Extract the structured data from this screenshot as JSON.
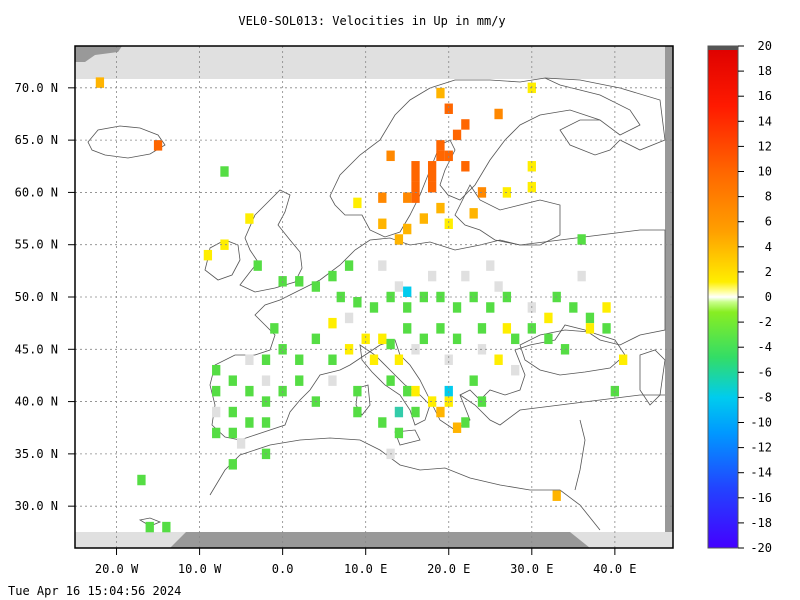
{
  "title": "VEL0-SOL013: Velocities in Up in mm/y",
  "timestamp": "Tue Apr 16 15:04:56 2024",
  "map": {
    "lon_range": [
      -25,
      47
    ],
    "lat_range": [
      26,
      74
    ],
    "y_ticks": [
      "70.0 N",
      "65.0 N",
      "60.0 N",
      "55.0 N",
      "50.0 N",
      "45.0 N",
      "40.0 N",
      "35.0 N",
      "30.0 N"
    ],
    "x_ticks": [
      "20.0 W",
      "10.0 W",
      "0.0",
      "10.0 E",
      "20.0 E",
      "30.0 E",
      "40.0 E"
    ],
    "colors": {
      "no_data": "#e0e0e0",
      "frame": "#000000",
      "grid": "#888888",
      "coast": "#555555"
    }
  },
  "colorbar": {
    "labels": [
      "20",
      "18",
      "16",
      "14",
      "12",
      "10",
      "8",
      "6",
      "4",
      "2",
      "0",
      "-2",
      "-4",
      "-6",
      "-8",
      "-10",
      "-12",
      "-14",
      "-16",
      "-18",
      "-20"
    ]
  },
  "cells": [
    {
      "lon": 13,
      "lat": 63.5,
      "v": 7
    },
    {
      "lon": 16,
      "lat": 62.5,
      "v": 8
    },
    {
      "lon": 16,
      "lat": 61.5,
      "v": 8
    },
    {
      "lon": 16,
      "lat": 60.5,
      "v": 8
    },
    {
      "lon": 16,
      "lat": 59.5,
      "v": 8
    },
    {
      "lon": 19,
      "lat": 64.5,
      "v": 8
    },
    {
      "lon": 19,
      "lat": 63.5,
      "v": 8
    },
    {
      "lon": 18,
      "lat": 62.5,
      "v": 8
    },
    {
      "lon": 18,
      "lat": 61.5,
      "v": 8
    },
    {
      "lon": 18,
      "lat": 60.5,
      "v": 8
    },
    {
      "lon": 20,
      "lat": 63.5,
      "v": 8
    },
    {
      "lon": 21,
      "lat": 65.5,
      "v": 8
    },
    {
      "lon": 20,
      "lat": 68,
      "v": 8
    },
    {
      "lon": 22,
      "lat": 66.5,
      "v": 8
    },
    {
      "lon": 26,
      "lat": 67.5,
      "v": 7
    },
    {
      "lon": 22,
      "lat": 62.5,
      "v": 8
    },
    {
      "lon": 24,
      "lat": 60,
      "v": 6
    },
    {
      "lon": 15,
      "lat": 59.5,
      "v": 7
    },
    {
      "lon": 12,
      "lat": 59.5,
      "v": 6
    },
    {
      "lon": 17,
      "lat": 57.5,
      "v": 5
    },
    {
      "lon": 12,
      "lat": 57,
      "v": 4
    },
    {
      "lon": 15,
      "lat": 56.5,
      "v": 4
    },
    {
      "lon": 14,
      "lat": 55.5,
      "v": 4
    },
    {
      "lon": 19,
      "lat": 58.5,
      "v": 5
    },
    {
      "lon": 23,
      "lat": 58,
      "v": 4
    },
    {
      "lon": 27,
      "lat": 60,
      "v": 3
    },
    {
      "lon": 30,
      "lat": 60.5,
      "v": 3
    },
    {
      "lon": 30,
      "lat": 62.5,
      "v": 3
    },
    {
      "lon": 9,
      "lat": 59,
      "v": 3
    },
    {
      "lon": 20,
      "lat": 57,
      "v": 3
    },
    {
      "lon": 19,
      "lat": 69.5,
      "v": 4
    },
    {
      "lon": 30,
      "lat": 70,
      "v": 3
    },
    {
      "lon": -22,
      "lat": 70.5,
      "v": 4
    },
    {
      "lon": -15,
      "lat": 64.5,
      "v": 8
    },
    {
      "lon": -7,
      "lat": 62,
      "v": -2
    },
    {
      "lon": -4,
      "lat": 57.5,
      "v": 3
    },
    {
      "lon": -7,
      "lat": 55,
      "v": 3
    },
    {
      "lon": -9,
      "lat": 54,
      "v": 3
    },
    {
      "lon": -3,
      "lat": 53,
      "v": -2
    },
    {
      "lon": 0,
      "lat": 51.5,
      "v": -2
    },
    {
      "lon": 2,
      "lat": 51.5,
      "v": -2
    },
    {
      "lon": 4,
      "lat": 51,
      "v": -2
    },
    {
      "lon": 6,
      "lat": 52,
      "v": -2
    },
    {
      "lon": 8,
      "lat": 53,
      "v": -2
    },
    {
      "lon": 7,
      "lat": 50,
      "v": -2
    },
    {
      "lon": 9,
      "lat": 49.5,
      "v": -2
    },
    {
      "lon": 11,
      "lat": 49,
      "v": -2
    },
    {
      "lon": 13,
      "lat": 50,
      "v": -2
    },
    {
      "lon": 15,
      "lat": 49,
      "v": -2
    },
    {
      "lon": 17,
      "lat": 50,
      "v": -2
    },
    {
      "lon": 19,
      "lat": 50,
      "v": -2
    },
    {
      "lon": 21,
      "lat": 49,
      "v": -2
    },
    {
      "lon": 23,
      "lat": 50,
      "v": -2
    },
    {
      "lon": 25,
      "lat": 49,
      "v": -2
    },
    {
      "lon": 27,
      "lat": 50,
      "v": -2
    },
    {
      "lon": 33,
      "lat": 50,
      "v": -2
    },
    {
      "lon": 35,
      "lat": 49,
      "v": -2
    },
    {
      "lon": 37,
      "lat": 48,
      "v": -2
    },
    {
      "lon": 39,
      "lat": 47,
      "v": -2
    },
    {
      "lon": 30,
      "lat": 47,
      "v": -2
    },
    {
      "lon": 32,
      "lat": 46,
      "v": -2
    },
    {
      "lon": 28,
      "lat": 46,
      "v": -2
    },
    {
      "lon": 15,
      "lat": 47,
      "v": -2
    },
    {
      "lon": 17,
      "lat": 46,
      "v": -2
    },
    {
      "lon": 19,
      "lat": 47,
      "v": -2
    },
    {
      "lon": 21,
      "lat": 46,
      "v": -2
    },
    {
      "lon": 24,
      "lat": 47,
      "v": -2
    },
    {
      "lon": -1,
      "lat": 47,
      "v": -2
    },
    {
      "lon": 0,
      "lat": 45,
      "v": -2
    },
    {
      "lon": -2,
      "lat": 44,
      "v": -2
    },
    {
      "lon": 2,
      "lat": 44,
      "v": -2
    },
    {
      "lon": 4,
      "lat": 46,
      "v": -2
    },
    {
      "lon": 6,
      "lat": 44,
      "v": -2
    },
    {
      "lon": -8,
      "lat": 43,
      "v": -2
    },
    {
      "lon": -6,
      "lat": 42,
      "v": -2
    },
    {
      "lon": -8,
      "lat": 41,
      "v": -2
    },
    {
      "lon": -4,
      "lat": 41,
      "v": -2
    },
    {
      "lon": -2,
      "lat": 40,
      "v": -2
    },
    {
      "lon": 0,
      "lat": 41,
      "v": -2
    },
    {
      "lon": 2,
      "lat": 42,
      "v": -2
    },
    {
      "lon": -6,
      "lat": 39,
      "v": -2
    },
    {
      "lon": -4,
      "lat": 38,
      "v": -2
    },
    {
      "lon": -2,
      "lat": 38,
      "v": -2
    },
    {
      "lon": 4,
      "lat": 40,
      "v": -2
    },
    {
      "lon": -8,
      "lat": 37,
      "v": -2
    },
    {
      "lon": -6,
      "lat": 37,
      "v": -2
    },
    {
      "lon": -2,
      "lat": 35,
      "v": -2
    },
    {
      "lon": -6,
      "lat": 34,
      "v": -2
    },
    {
      "lon": 9,
      "lat": 41,
      "v": -2
    },
    {
      "lon": 9,
      "lat": 39,
      "v": -2
    },
    {
      "lon": 13,
      "lat": 42,
      "v": -2
    },
    {
      "lon": 15,
      "lat": 41,
      "v": -2
    },
    {
      "lon": 16,
      "lat": 39,
      "v": -2
    },
    {
      "lon": 14,
      "lat": 37,
      "v": -2
    },
    {
      "lon": 12,
      "lat": 38,
      "v": -2
    },
    {
      "lon": 11,
      "lat": 44,
      "v": 2
    },
    {
      "lon": 8,
      "lat": 45,
      "v": 2
    },
    {
      "lon": 12,
      "lat": 46,
      "v": 2
    },
    {
      "lon": 14,
      "lat": 44,
      "v": 2
    },
    {
      "lon": 16,
      "lat": 41,
      "v": 3
    },
    {
      "lon": 18,
      "lat": 40,
      "v": 3
    },
    {
      "lon": 20,
      "lat": 40,
      "v": 3
    },
    {
      "lon": 22,
      "lat": 38,
      "v": -2
    },
    {
      "lon": 24,
      "lat": 40,
      "v": -2
    },
    {
      "lon": 23,
      "lat": 42,
      "v": -2
    },
    {
      "lon": 26,
      "lat": 44,
      "v": 3
    },
    {
      "lon": 34,
      "lat": 45,
      "v": -2
    },
    {
      "lon": 41,
      "lat": 44,
      "v": 3
    },
    {
      "lon": 40,
      "lat": 41,
      "v": -2
    },
    {
      "lon": 33,
      "lat": 31,
      "v": 4
    },
    {
      "lon": -14,
      "lat": 28,
      "v": -2
    },
    {
      "lon": -16,
      "lat": 28,
      "v": -2
    },
    {
      "lon": -17,
      "lat": 32.5,
      "v": -2
    },
    {
      "lon": 36,
      "lat": 55.5,
      "v": -2
    },
    {
      "lon": 15,
      "lat": 50.5,
      "v": -7
    },
    {
      "lon": 20,
      "lat": 41,
      "v": -7
    },
    {
      "lon": 13,
      "lat": 45.5,
      "v": -3
    },
    {
      "lon": 14,
      "lat": 39,
      "v": -4
    },
    {
      "lon": 21,
      "lat": 37.5,
      "v": 4
    },
    {
      "lon": 19,
      "lat": 39,
      "v": 4
    },
    {
      "lon": 10,
      "lat": 46,
      "v": 2
    },
    {
      "lon": 6,
      "lat": 47.5,
      "v": 2
    },
    {
      "lon": 32,
      "lat": 48,
      "v": 3
    },
    {
      "lon": 39,
      "lat": 49,
      "v": 3
    },
    {
      "lon": 37,
      "lat": 47,
      "v": 3
    },
    {
      "lon": 27,
      "lat": 47,
      "v": 3
    }
  ],
  "no_data_cells": [
    {
      "lon": 12,
      "lat": 53
    },
    {
      "lon": 14,
      "lat": 51
    },
    {
      "lon": 18,
      "lat": 52
    },
    {
      "lon": 22,
      "lat": 52
    },
    {
      "lon": 26,
      "lat": 51
    },
    {
      "lon": 30,
      "lat": 49
    },
    {
      "lon": 16,
      "lat": 45
    },
    {
      "lon": 20,
      "lat": 44
    },
    {
      "lon": 24,
      "lat": 45
    },
    {
      "lon": -4,
      "lat": 44
    },
    {
      "lon": -2,
      "lat": 42
    },
    {
      "lon": 6,
      "lat": 42
    },
    {
      "lon": -5,
      "lat": 36
    },
    {
      "lon": 13,
      "lat": 35
    },
    {
      "lon": 25,
      "lat": 53
    },
    {
      "lon": -8,
      "lat": 39
    },
    {
      "lon": 36,
      "lat": 52
    },
    {
      "lon": 8,
      "lat": 48
    },
    {
      "lon": 28,
      "lat": 43
    }
  ]
}
